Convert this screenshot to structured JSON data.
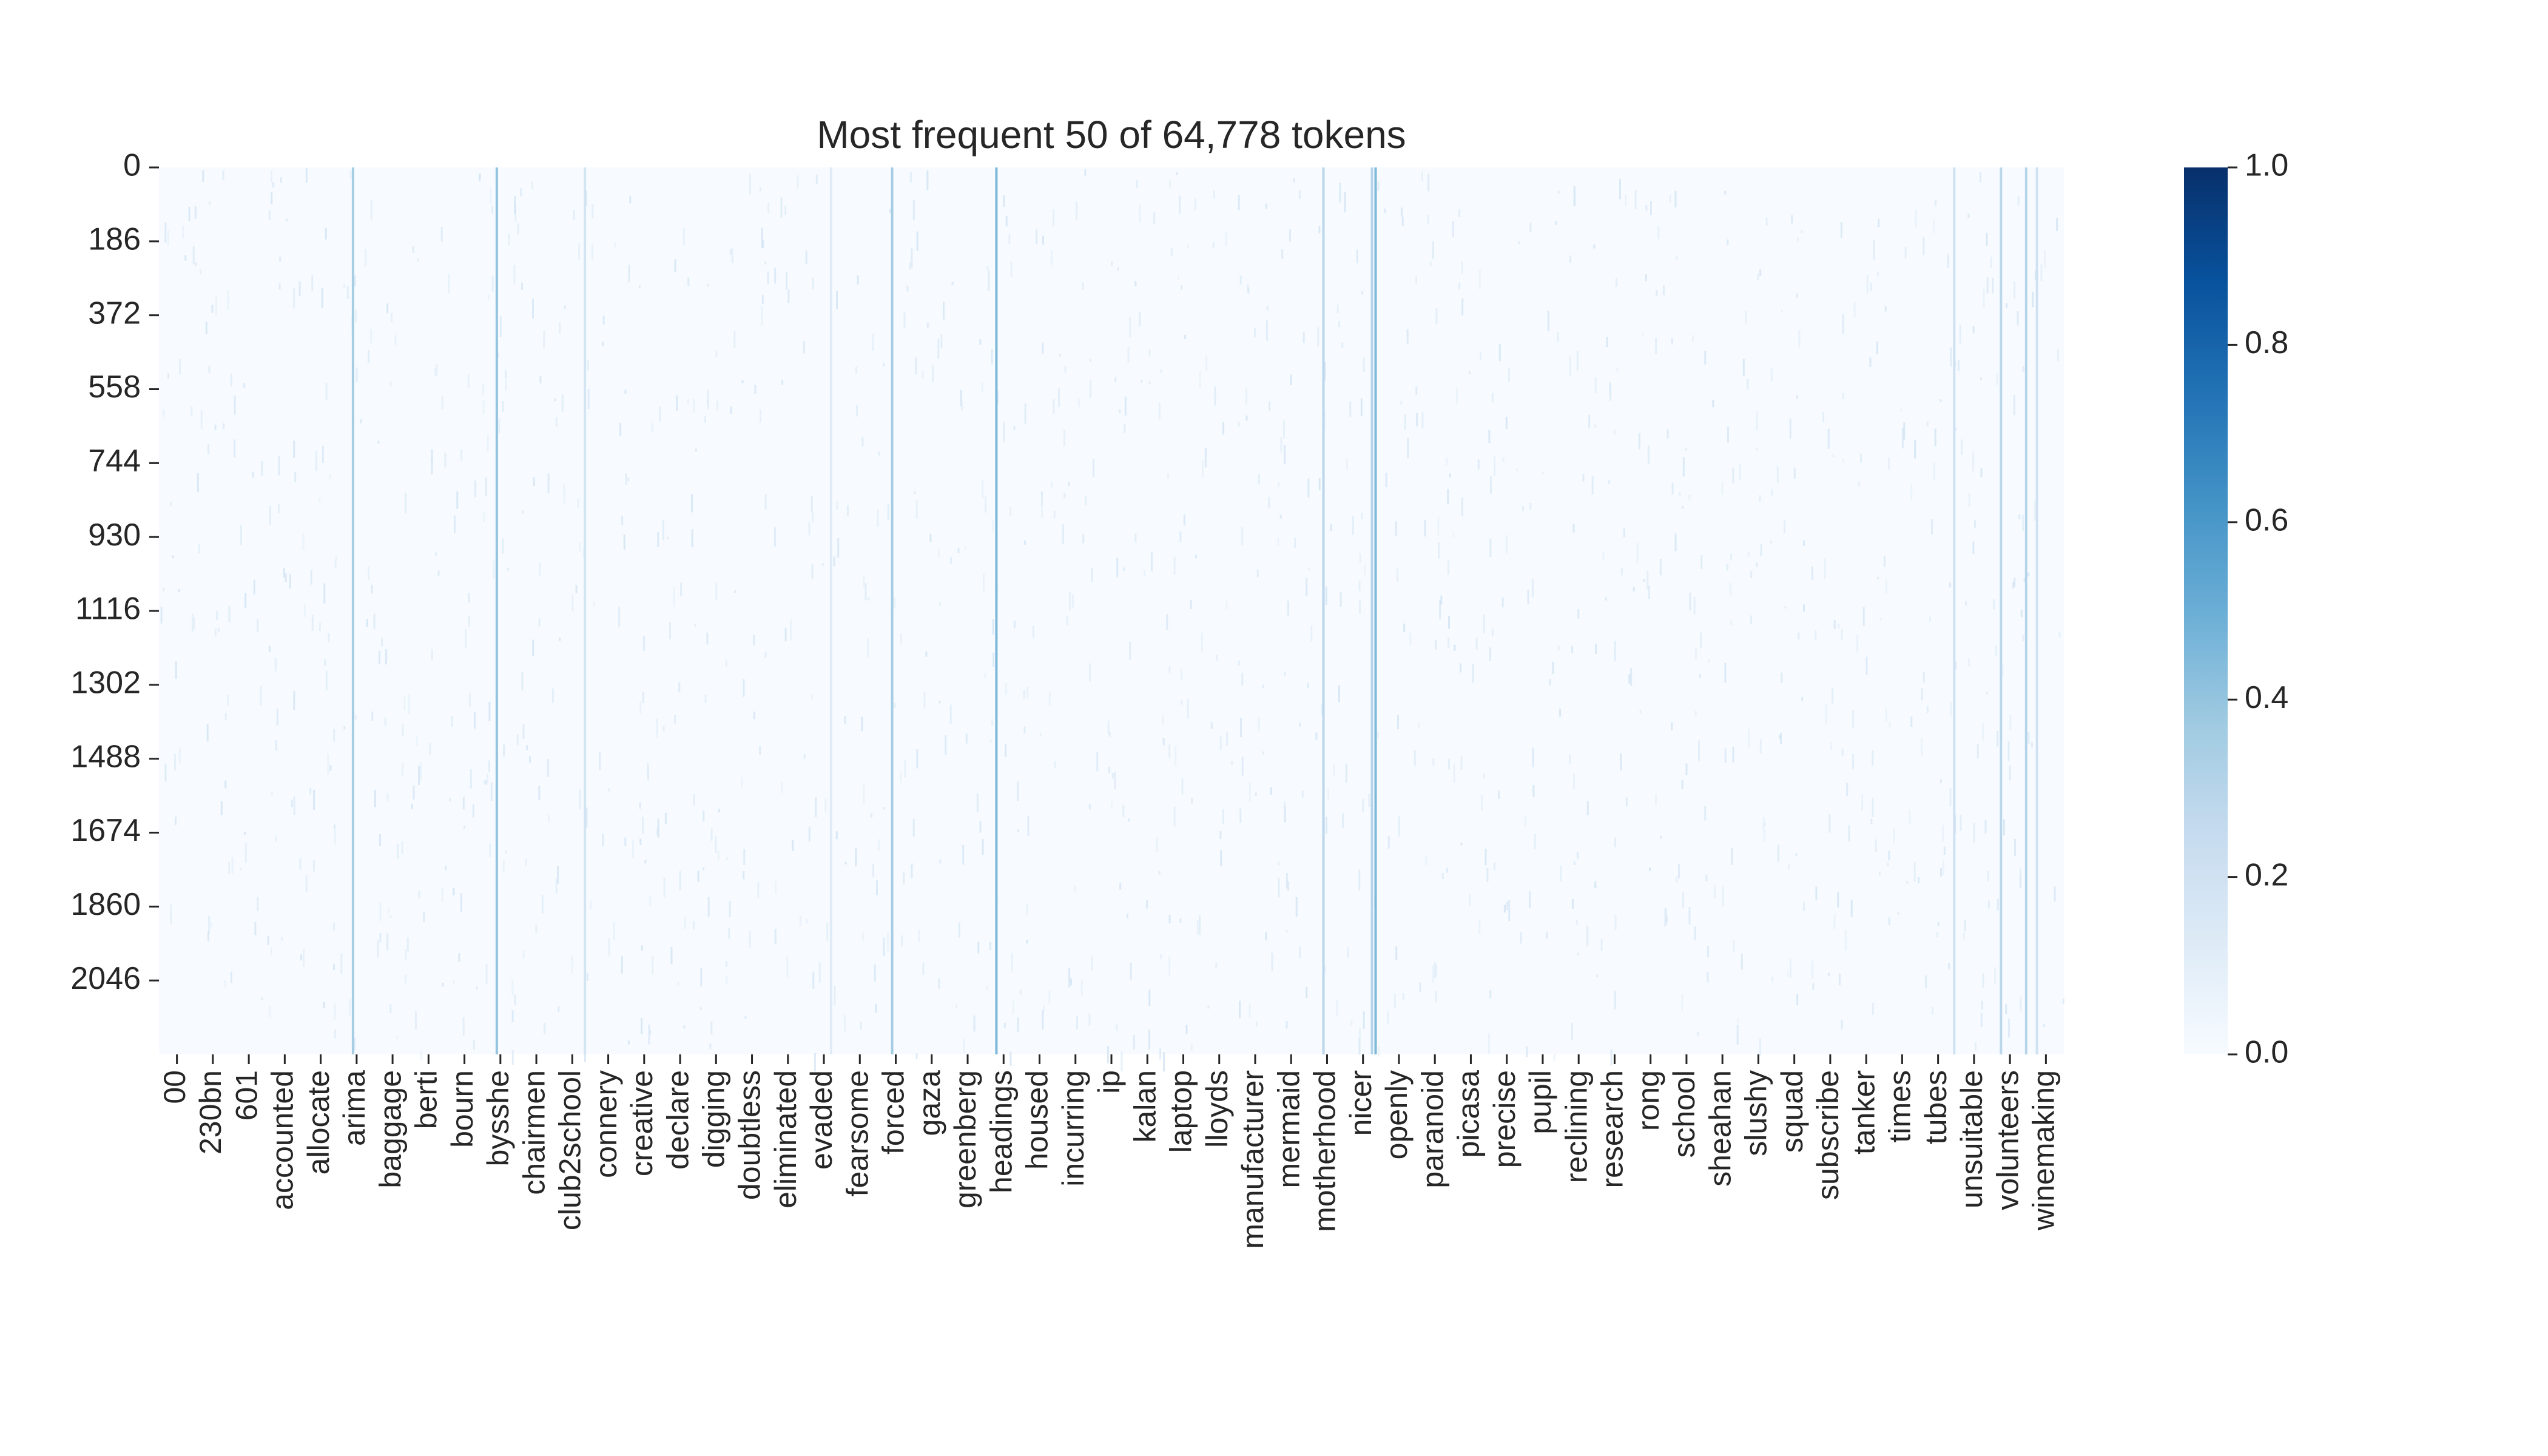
{
  "chart_data": {
    "type": "heatmap",
    "title": "Most frequent 50 of 64,778 tokens",
    "xlabel": "",
    "ylabel": "",
    "colormap": "Blues",
    "colors": {
      "scale": [
        "#f7fbff",
        "#deebf7",
        "#c6dbef",
        "#9ecae1",
        "#6baed6",
        "#4292c6",
        "#2171b5",
        "#08519c",
        "#08306b"
      ],
      "text": "#262626"
    },
    "y_tick_labels": [
      "0",
      "186",
      "372",
      "558",
      "744",
      "930",
      "1116",
      "1302",
      "1488",
      "1674",
      "1860",
      "2046"
    ],
    "y_tick_values": [
      0,
      186,
      372,
      558,
      744,
      930,
      1116,
      1302,
      1488,
      1674,
      1860,
      2046
    ],
    "n_rows": 2232,
    "x_tick_labels": [
      "00",
      "230bn",
      "601",
      "accounted",
      "allocate",
      "arima",
      "baggage",
      "berti",
      "bourn",
      "bysshe",
      "chairmen",
      "club2school",
      "connery",
      "creative",
      "declare",
      "digging",
      "doubtless",
      "eliminated",
      "evaded",
      "fearsome",
      "forced",
      "gaza",
      "greenberg",
      "headings",
      "housed",
      "incurring",
      "ip",
      "kalan",
      "laptop",
      "lloyds",
      "manufacturer",
      "mermaid",
      "motherhood",
      "nicer",
      "openly",
      "paranoid",
      "picasa",
      "precise",
      "pupil",
      "reclining",
      "research",
      "rong",
      "school",
      "sheahan",
      "slushy",
      "squad",
      "subscribe",
      "tanker",
      "times",
      "tubes",
      "unsuitable",
      "volunteers",
      "winemaking"
    ],
    "n_columns_shown": 53,
    "colorbar": {
      "min": 0.0,
      "max": 1.0,
      "tick_labels": [
        "0.0",
        "0.2",
        "0.4",
        "0.6",
        "0.8",
        "1.0"
      ],
      "tick_values": [
        0.0,
        0.2,
        0.4,
        0.6,
        0.8,
        1.0
      ]
    },
    "typical_cell_value": 0.0,
    "highlighted_columns": [
      {
        "after_label": "allocate",
        "offset": 0.9,
        "value": 0.35
      },
      {
        "after_label": "bourn",
        "offset": 0.9,
        "value": 0.4
      },
      {
        "after_label": "club2school",
        "offset": 0.35,
        "value": 0.18
      },
      {
        "after_label": "evaded",
        "offset": 0.2,
        "value": 0.12
      },
      {
        "after_label": "fearsome",
        "offset": 0.9,
        "value": 0.35
      },
      {
        "after_label": "greenberg",
        "offset": 0.8,
        "value": 0.45
      },
      {
        "after_label": "mermaid",
        "offset": 0.9,
        "value": 0.28
      },
      {
        "after_label": "nicer",
        "offset": 0.25,
        "value": 0.3
      },
      {
        "after_label": "nicer",
        "offset": 0.35,
        "value": 0.45
      },
      {
        "after_label": "tubes",
        "offset": 0.45,
        "value": 0.2
      },
      {
        "after_label": "unsuitable",
        "offset": 0.75,
        "value": 0.28
      },
      {
        "after_label": "volunteers",
        "offset": 0.45,
        "value": 0.3
      },
      {
        "after_label": "volunteers",
        "offset": 0.75,
        "value": 0.2
      }
    ]
  }
}
